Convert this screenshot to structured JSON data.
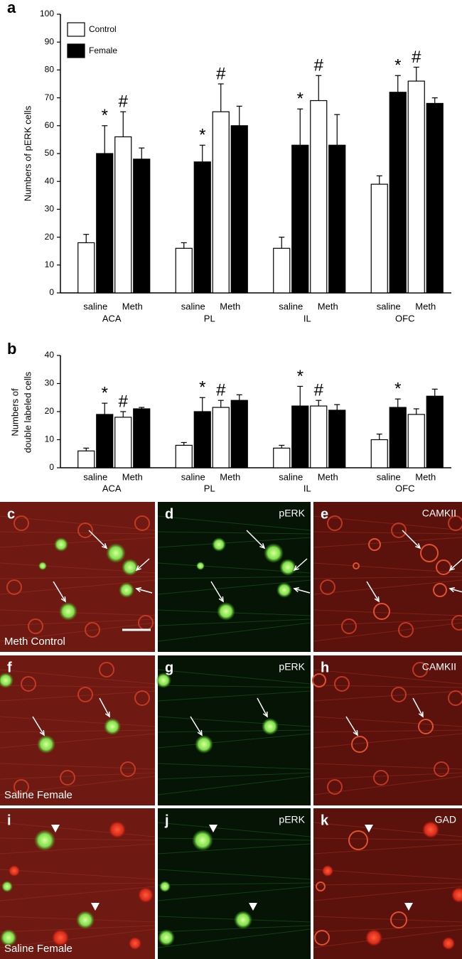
{
  "chart_data": [
    {
      "type": "bar",
      "panel_label": "a",
      "ylabel": "Numbers of pERK cells",
      "groups": [
        "ACA",
        "PL",
        "IL",
        "OFC"
      ],
      "categories": [
        "saline",
        "Meth",
        "saline",
        "Meth",
        "saline",
        "Meth",
        "saline",
        "Meth"
      ],
      "series": [
        {
          "name": "Control",
          "color": "#ffffff",
          "values": [
            18,
            56,
            16,
            65,
            16,
            69,
            39,
            76
          ],
          "errors": [
            3,
            9,
            2,
            10,
            4,
            9,
            3,
            5
          ],
          "markers": [
            null,
            "#",
            null,
            "#",
            null,
            "#",
            null,
            "#"
          ]
        },
        {
          "name": "Female",
          "color": "#000000",
          "values": [
            50,
            48,
            47,
            60,
            53,
            53,
            72,
            68
          ],
          "errors": [
            10,
            4,
            6,
            7,
            13,
            11,
            6,
            2
          ],
          "markers": [
            "*",
            null,
            "*",
            null,
            "*",
            null,
            "*",
            null
          ]
        }
      ],
      "ylim": [
        0,
        100
      ],
      "yticks": [
        0,
        10,
        20,
        30,
        40,
        50,
        60,
        70,
        80,
        90,
        100
      ],
      "legend": "upper left"
    },
    {
      "type": "bar",
      "panel_label": "b",
      "ylabel": [
        "Numbers of",
        "double labeled cells"
      ],
      "groups": [
        "ACA",
        "PL",
        "IL",
        "OFC"
      ],
      "categories": [
        "saline",
        "Meth",
        "saline",
        "Meth",
        "saline",
        "Meth",
        "saline",
        "Meth"
      ],
      "series": [
        {
          "color": "#ffffff",
          "values": [
            6,
            18,
            8,
            21.5,
            7,
            22,
            10,
            19
          ],
          "errors": [
            1,
            2,
            1,
            2.5,
            1,
            2,
            2,
            2
          ],
          "markers": [
            null,
            "#",
            null,
            "#",
            null,
            "#",
            null,
            null
          ]
        },
        {
          "color": "#000000",
          "values": [
            19,
            21,
            20,
            24,
            22,
            20.5,
            21.5,
            25.5
          ],
          "errors": [
            4,
            0.5,
            5,
            2,
            7,
            2,
            3,
            2.5
          ],
          "markers": [
            "*",
            null,
            "*",
            null,
            "*",
            null,
            "*",
            null
          ]
        }
      ],
      "ylim": [
        0,
        40
      ],
      "yticks": [
        0,
        10,
        20,
        30,
        40
      ]
    }
  ],
  "micrographs": {
    "rows": [
      {
        "label": "Meth Control",
        "panels": [
          {
            "letter": "c"
          },
          {
            "letter": "d",
            "channel": "pERK"
          },
          {
            "letter": "e",
            "channel": "CAMKII"
          }
        ]
      },
      {
        "label": "Saline Female",
        "panels": [
          {
            "letter": "f"
          },
          {
            "letter": "g",
            "channel": "pERK"
          },
          {
            "letter": "h",
            "channel": "CAMKII"
          }
        ]
      },
      {
        "label": "Saline Female",
        "panels": [
          {
            "letter": "i"
          },
          {
            "letter": "j",
            "channel": "pERK"
          },
          {
            "letter": "k",
            "channel": "GAD"
          }
        ]
      }
    ]
  }
}
